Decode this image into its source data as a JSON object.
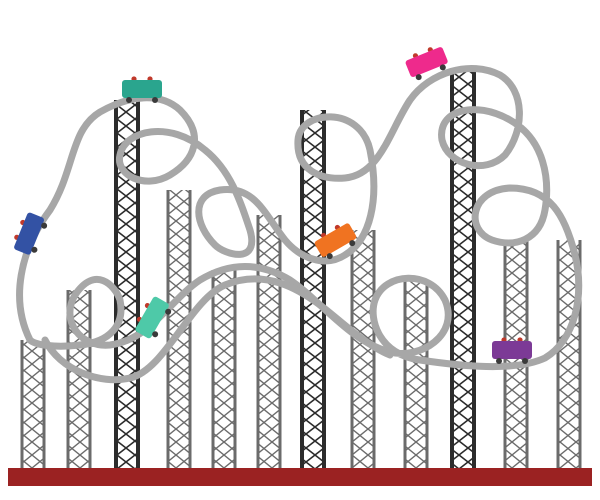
{
  "colors": {
    "background": "#ffffff",
    "track": "#a7a7a7",
    "tower_dark": "#2c2c2c",
    "tower_light": "#6b6b6b",
    "ground": "#9b2222",
    "wheel": "#3a3a3a",
    "seat": "#c0392b"
  },
  "cars": [
    {
      "name": "car-teal-top",
      "color": "#2aa58e"
    },
    {
      "name": "car-navy",
      "color": "#3352a4"
    },
    {
      "name": "car-mint",
      "color": "#4ec9a8"
    },
    {
      "name": "car-orange",
      "color": "#f07321"
    },
    {
      "name": "car-pink",
      "color": "#ee2a8c"
    },
    {
      "name": "car-purple",
      "color": "#7c3a96"
    }
  ]
}
